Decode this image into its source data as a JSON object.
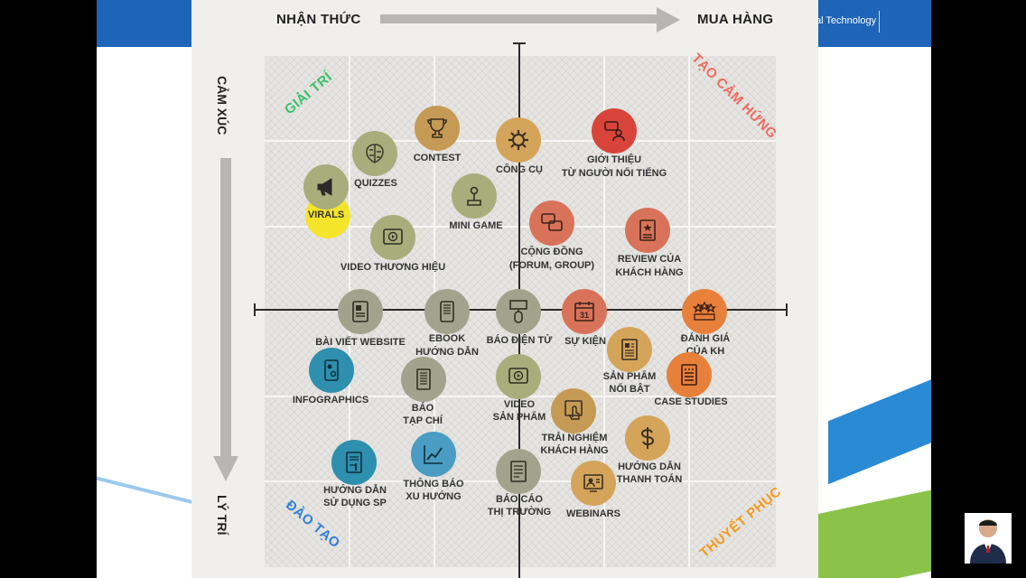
{
  "brand_text": "al Technology",
  "header": {
    "left": "NHẬN THỨC",
    "right": "MUA HÀNG"
  },
  "side": {
    "top": "CẢM XÚC",
    "bottom": "LÝ TRÍ"
  },
  "corners": {
    "top_left": {
      "text": "GIẢI TRÍ",
      "color": "#3bbf6a"
    },
    "top_right": {
      "text": "TẠO CẢM HỨNG",
      "color": "#f06a5e"
    },
    "bottom_left": {
      "text": "ĐÀO TẠO",
      "color": "#2f7fd6"
    },
    "bottom_right": {
      "text": "THUYẾT PHỤC",
      "color": "#f39a1e"
    }
  },
  "items": {
    "contest": "CONTEST",
    "quizzes": "QUIZZES",
    "virals": "VIRALS",
    "cong_cu": "CÔNG CỤ",
    "gioi_thieu": [
      "GIỚI THIỆU",
      "TỪ NGƯỜI NỔI TIẾNG"
    ],
    "mini_game": "MINI GAME",
    "video_thuong_hieu": "VIDEO THƯƠNG HIỆU",
    "cong_dong": [
      "CỘNG ĐỒNG",
      "(FORUM, GROUP)"
    ],
    "review": [
      "REVIEW CỦA",
      "KHÁCH HÀNG"
    ],
    "bai_viet": "BÀI VIẾT WEBSITE",
    "ebook": [
      "EBOOK",
      "HƯỚNG DẪN"
    ],
    "bao_dien_tu": "BÁO ĐIỆN TỬ",
    "su_kien": "SỰ KIỆN",
    "danh_gia": [
      "ĐÁNH GIÁ",
      "CỦA KH"
    ],
    "infographics": "INFOGRAPHICS",
    "bao_tap_chi": [
      "BÁO",
      "TẠP CHÍ"
    ],
    "video_san_pham": [
      "VIDEO",
      "SẢN PHẨM"
    ],
    "san_pham_noi_bat": [
      "SẢN PHẨM",
      "NỔI BẬT"
    ],
    "case_studies": "CASE STUDIES",
    "trai_nghiem": [
      "TRẢI NGHIỆM",
      "KHÁCH HÀNG"
    ],
    "huong_dan_su_dung": [
      "HƯỚNG DẪN",
      "SỬ DỤNG SP"
    ],
    "thong_bao": [
      "THÔNG BÁO",
      "XU HƯỚNG"
    ],
    "bao_cao": [
      "BÁO CÁO",
      "THỊ TRƯỜNG"
    ],
    "huong_dan_thanh_toan": [
      "HƯỚNG DẪN",
      "THANH TOÁN"
    ],
    "webinars": "WEBINARS",
    "su_kien_icon_number": "31"
  }
}
